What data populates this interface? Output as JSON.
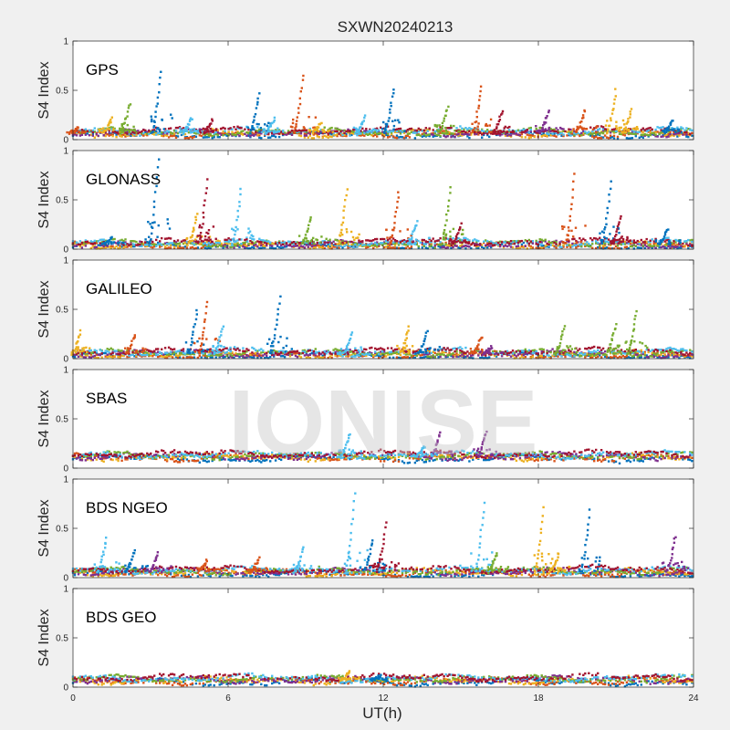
{
  "figure": {
    "title": "SXWN20240213",
    "xlabel": "UT(h)",
    "watermark": "IONISE",
    "background": "#f0f0f0"
  },
  "chart_data": {
    "type": "scatter",
    "xlim": [
      0,
      24
    ],
    "xticks": [
      "0",
      "6",
      "12",
      "18",
      "24"
    ],
    "ylim": [
      0,
      1
    ],
    "yticks": [
      "0",
      "0.5",
      "1"
    ],
    "ylabel": "S4 Index",
    "series_colors": [
      "#0072bd",
      "#d95319",
      "#edb120",
      "#7e2f8e",
      "#77ac30",
      "#4dbeee",
      "#a2142f"
    ],
    "panels": [
      {
        "label": "GPS",
        "baseline": 0.07,
        "events": [
          {
            "t": 0.2,
            "peak": 0.12,
            "c": 1
          },
          {
            "t": 1.5,
            "peak": 0.22,
            "c": 2
          },
          {
            "t": 2.2,
            "peak": 0.37,
            "c": 4
          },
          {
            "t": 3.4,
            "peak": 0.68,
            "c": 0
          },
          {
            "t": 4.6,
            "peak": 0.22,
            "c": 5
          },
          {
            "t": 5.4,
            "peak": 0.2,
            "c": 6
          },
          {
            "t": 7.2,
            "peak": 0.47,
            "c": 0
          },
          {
            "t": 7.8,
            "peak": 0.22,
            "c": 5
          },
          {
            "t": 8.9,
            "peak": 0.66,
            "c": 1
          },
          {
            "t": 9.6,
            "peak": 0.18,
            "c": 2
          },
          {
            "t": 11.3,
            "peak": 0.24,
            "c": 5
          },
          {
            "t": 12.4,
            "peak": 0.52,
            "c": 0
          },
          {
            "t": 14.5,
            "peak": 0.34,
            "c": 4
          },
          {
            "t": 15.8,
            "peak": 0.55,
            "c": 1
          },
          {
            "t": 16.6,
            "peak": 0.3,
            "c": 6
          },
          {
            "t": 18.4,
            "peak": 0.3,
            "c": 3
          },
          {
            "t": 19.8,
            "peak": 0.3,
            "c": 1
          },
          {
            "t": 21.0,
            "peak": 0.5,
            "c": 2
          },
          {
            "t": 21.6,
            "peak": 0.3,
            "c": 2
          },
          {
            "t": 23.2,
            "peak": 0.2,
            "c": 0
          }
        ]
      },
      {
        "label": "GLONASS",
        "baseline": 0.05,
        "events": [
          {
            "t": 1.5,
            "peak": 0.12,
            "c": 0
          },
          {
            "t": 3.3,
            "peak": 0.92,
            "c": 0
          },
          {
            "t": 4.8,
            "peak": 0.35,
            "c": 2
          },
          {
            "t": 5.2,
            "peak": 0.7,
            "c": 6
          },
          {
            "t": 6.5,
            "peak": 0.6,
            "c": 5
          },
          {
            "t": 9.2,
            "peak": 0.33,
            "c": 4
          },
          {
            "t": 10.6,
            "peak": 0.6,
            "c": 2
          },
          {
            "t": 12.6,
            "peak": 0.58,
            "c": 1
          },
          {
            "t": 13.3,
            "peak": 0.28,
            "c": 5
          },
          {
            "t": 14.6,
            "peak": 0.62,
            "c": 4
          },
          {
            "t": 15.0,
            "peak": 0.25,
            "c": 6
          },
          {
            "t": 19.4,
            "peak": 0.75,
            "c": 1
          },
          {
            "t": 20.8,
            "peak": 0.68,
            "c": 0
          },
          {
            "t": 21.2,
            "peak": 0.33,
            "c": 6
          },
          {
            "t": 23.0,
            "peak": 0.2,
            "c": 0
          }
        ]
      },
      {
        "label": "GALILEO",
        "baseline": 0.05,
        "events": [
          {
            "t": 0.3,
            "peak": 0.28,
            "c": 2
          },
          {
            "t": 2.4,
            "peak": 0.25,
            "c": 1
          },
          {
            "t": 4.8,
            "peak": 0.48,
            "c": 0
          },
          {
            "t": 5.2,
            "peak": 0.57,
            "c": 1
          },
          {
            "t": 5.8,
            "peak": 0.32,
            "c": 5
          },
          {
            "t": 8.0,
            "peak": 0.63,
            "c": 0
          },
          {
            "t": 10.8,
            "peak": 0.28,
            "c": 5
          },
          {
            "t": 13.0,
            "peak": 0.32,
            "c": 2
          },
          {
            "t": 13.7,
            "peak": 0.28,
            "c": 0
          },
          {
            "t": 15.8,
            "peak": 0.22,
            "c": 1
          },
          {
            "t": 16.2,
            "peak": 0.12,
            "c": 3
          },
          {
            "t": 19.0,
            "peak": 0.32,
            "c": 4
          },
          {
            "t": 21.0,
            "peak": 0.35,
            "c": 4
          },
          {
            "t": 21.8,
            "peak": 0.48,
            "c": 4
          }
        ]
      },
      {
        "label": "SBAS",
        "baseline": 0.12,
        "events": [
          {
            "t": 10.7,
            "peak": 0.35,
            "c": 5
          },
          {
            "t": 14.2,
            "peak": 0.36,
            "c": 3
          },
          {
            "t": 16.0,
            "peak": 0.38,
            "c": 3
          },
          {
            "t": 13.6,
            "peak": 0.22,
            "c": 5
          }
        ]
      },
      {
        "label": "BDS NGEO",
        "baseline": 0.06,
        "events": [
          {
            "t": 1.3,
            "peak": 0.4,
            "c": 5
          },
          {
            "t": 2.4,
            "peak": 0.28,
            "c": 0
          },
          {
            "t": 3.3,
            "peak": 0.25,
            "c": 3
          },
          {
            "t": 5.2,
            "peak": 0.18,
            "c": 1
          },
          {
            "t": 7.2,
            "peak": 0.2,
            "c": 1
          },
          {
            "t": 8.9,
            "peak": 0.3,
            "c": 5
          },
          {
            "t": 10.9,
            "peak": 0.85,
            "c": 5
          },
          {
            "t": 11.6,
            "peak": 0.38,
            "c": 0
          },
          {
            "t": 12.1,
            "peak": 0.55,
            "c": 6
          },
          {
            "t": 15.9,
            "peak": 0.75,
            "c": 5
          },
          {
            "t": 16.4,
            "peak": 0.25,
            "c": 4
          },
          {
            "t": 18.2,
            "peak": 0.7,
            "c": 2
          },
          {
            "t": 18.8,
            "peak": 0.25,
            "c": 2
          },
          {
            "t": 20.0,
            "peak": 0.68,
            "c": 0
          },
          {
            "t": 23.3,
            "peak": 0.42,
            "c": 3
          }
        ]
      },
      {
        "label": "BDS GEO",
        "baseline": 0.075,
        "events": [
          {
            "t": 10.7,
            "peak": 0.16,
            "c": 2
          },
          {
            "t": 11.9,
            "peak": 0.12,
            "c": 0
          }
        ]
      }
    ]
  }
}
